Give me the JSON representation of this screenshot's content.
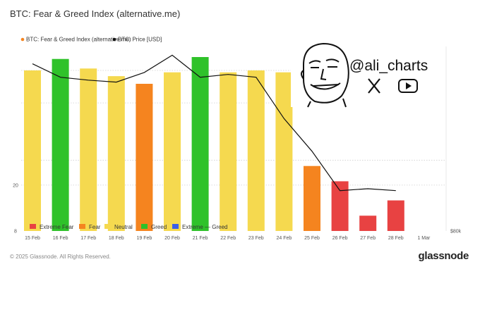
{
  "title": "BTC: Fear & Greed Index (alternative.me)",
  "footer": {
    "copyright": "© 2025 Glassnode. All Rights Reserved.",
    "brand": "glassnode"
  },
  "watermark": {
    "handle": "@ali_charts",
    "icons": [
      "x-logo-icon",
      "youtube-icon",
      "meme-face-icon"
    ]
  },
  "colors": {
    "extreme_fear": "#e84242",
    "fear": "#f5841f",
    "neutral": "#f5d94f",
    "greed": "#2fc22a",
    "extreme_greed": "#3b5ee8",
    "price_line": "#111111"
  },
  "chart_data": {
    "type": "bar",
    "top_legend": [
      {
        "label": "BTC: Fear & Greed Index (alternative.me)",
        "color": "#f5841f"
      },
      {
        "label": "BTC: Price [USD]",
        "color": "#111111"
      }
    ],
    "categories": [
      "15 Feb",
      "16 Feb",
      "17 Feb",
      "18 Feb",
      "19 Feb",
      "20 Feb",
      "21 Feb",
      "22 Feb",
      "23 Feb",
      "24 Feb",
      "25 Feb",
      "26 Feb",
      "27 Feb",
      "28 Feb",
      "1 Mar"
    ],
    "series": [
      {
        "name": "BTC: Fear & Greed Index (alternative.me)",
        "values": [
          50,
          53,
          50.5,
          48.5,
          46.5,
          49.5,
          53.5,
          49.5,
          50,
          49.5,
          25,
          21,
          12,
          16,
          null
        ],
        "classes": [
          "neutral",
          "greed",
          "neutral",
          "neutral",
          "fear",
          "neutral",
          "greed",
          "neutral",
          "neutral",
          "neutral",
          "fear",
          "extreme_fear",
          "extreme_fear",
          "extreme_fear",
          null
        ]
      },
      {
        "name": "BTC: Price [USD]",
        "values": [
          97400,
          96000,
          95700,
          95500,
          96500,
          98300,
          96000,
          96300,
          96000,
          91700,
          88300,
          84200,
          84400,
          84200,
          null
        ]
      }
    ],
    "y_left_ticks": [
      "8",
      "20"
    ],
    "y_right_ticks": [
      "$80k"
    ],
    "class_legend": [
      {
        "label": "Extreme Fear",
        "key": "extreme_fear"
      },
      {
        "label": "Fear",
        "key": "fear"
      },
      {
        "label": "Neutral",
        "key": "neutral"
      },
      {
        "label": "Greed",
        "key": "greed"
      },
      {
        "label": "Extreme — Greed",
        "key": "extreme_greed"
      }
    ],
    "ylim_left": [
      8,
      57
    ],
    "ylim_right": [
      80000,
      99500
    ],
    "grid": "dotted-horizontal"
  }
}
